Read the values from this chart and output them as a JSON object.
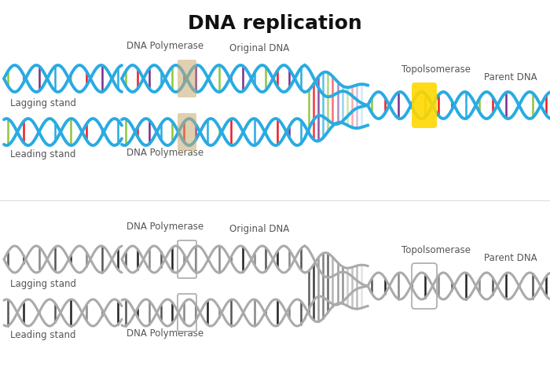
{
  "title": "DNA replication",
  "title_fontsize": 18,
  "title_fontweight": "bold",
  "background": "#ffffff",
  "labels": {
    "lagging_top": "Lagging stand",
    "leading_top": "Leading stand",
    "dna_poly_lag_top": "DNA Polymerase",
    "dna_poly_lead_top": "DNA Polymerase",
    "original_dna_top": "Original DNA",
    "topo_top": "Topolsomerase",
    "parent_dna_top": "Parent DNA",
    "lagging_bot": "Lagging stand",
    "leading_bot": "Leading stand",
    "dna_poly_lag_bot": "DNA Polymerase",
    "dna_poly_lead_bot": "DNA Polymerase",
    "original_dna_bot": "Original DNA",
    "topo_bot": "Topolsomerase",
    "parent_dna_bot": "Parent DNA"
  },
  "colors": {
    "helix_color": "#29ABE2",
    "helix_gray": "#aaaaaa",
    "bp1": "#8DC63F",
    "bp2": "#ED1C24",
    "bp3": "#7B2D8B",
    "bp4": "#29ABE2",
    "bp_gray1": "#555555",
    "bp_gray2": "#222222",
    "bp_gray3": "#888888",
    "poly_box_color": "#C8A870",
    "topo_box_color": "#FFD700",
    "label_color": "#555555"
  }
}
